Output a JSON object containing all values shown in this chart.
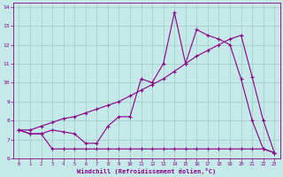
{
  "xlabel": "Windchill (Refroidissement éolien,°C)",
  "xlim": [
    -0.5,
    23.5
  ],
  "ylim": [
    6,
    14.2
  ],
  "yticks": [
    6,
    7,
    8,
    9,
    10,
    11,
    12,
    13,
    14
  ],
  "xticks": [
    0,
    1,
    2,
    3,
    4,
    5,
    6,
    7,
    8,
    9,
    10,
    11,
    12,
    13,
    14,
    15,
    16,
    17,
    18,
    19,
    20,
    21,
    22,
    23
  ],
  "bg_color": "#c5e8e8",
  "line_color": "#880088",
  "grid_color": "#a0c8c8",
  "line1_x": [
    0,
    1,
    2,
    3,
    4,
    5,
    6,
    7,
    8,
    9,
    10,
    11,
    12,
    13,
    14,
    15,
    16,
    17,
    18,
    19,
    20,
    21,
    22,
    23
  ],
  "line1_y": [
    7.5,
    7.3,
    7.3,
    6.5,
    6.5,
    6.5,
    6.5,
    6.5,
    6.5,
    6.5,
    6.5,
    6.5,
    6.5,
    6.5,
    6.5,
    6.5,
    6.5,
    6.5,
    6.5,
    6.5,
    6.5,
    6.5,
    6.5,
    6.3
  ],
  "line2_x": [
    0,
    1,
    2,
    3,
    4,
    5,
    6,
    7,
    8,
    9,
    10,
    11,
    12,
    13,
    14,
    15,
    16,
    17,
    18,
    19,
    20,
    21,
    22,
    23
  ],
  "line2_y": [
    7.5,
    7.3,
    7.3,
    7.5,
    7.4,
    7.3,
    6.8,
    6.8,
    7.7,
    8.2,
    8.2,
    10.2,
    10.0,
    11.0,
    13.7,
    11.0,
    12.8,
    12.5,
    12.3,
    12.0,
    10.2,
    8.0,
    6.5,
    6.3
  ],
  "line3_x": [
    0,
    1,
    2,
    3,
    4,
    5,
    6,
    7,
    8,
    9,
    10,
    11,
    12,
    13,
    14,
    15,
    16,
    17,
    18,
    19,
    20,
    21,
    22,
    23
  ],
  "line3_y": [
    7.5,
    7.5,
    7.7,
    7.9,
    8.1,
    8.2,
    8.4,
    8.6,
    8.8,
    9.0,
    9.3,
    9.6,
    9.9,
    10.2,
    10.6,
    11.0,
    11.4,
    11.7,
    12.0,
    12.3,
    12.5,
    10.3,
    8.0,
    6.3
  ]
}
